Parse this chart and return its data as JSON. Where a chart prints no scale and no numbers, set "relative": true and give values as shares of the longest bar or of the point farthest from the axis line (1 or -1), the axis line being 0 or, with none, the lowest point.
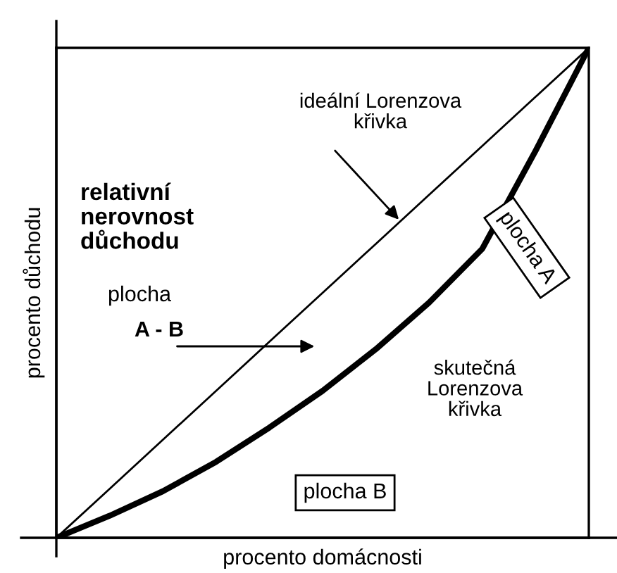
{
  "chart_data": {
    "type": "line",
    "relative": true,
    "xlabel": "procento domácnosti",
    "ylabel": "procento důchodu",
    "categories": [
      null,
      null,
      null,
      null,
      null,
      null,
      null,
      null,
      null,
      null,
      null
    ],
    "series": [
      {
        "name": "ideální Lorenzova\nkřivka",
        "color": "#000000",
        "values": [
          0,
          0.1,
          0.2,
          0.3,
          0.4,
          0.5,
          0.6,
          0.7,
          0.8,
          0.9,
          1
        ]
      },
      {
        "name": "skutečná\nLorenzova\nkřivka",
        "color": "#000000",
        "values": [
          0,
          0.045,
          0.095,
          0.155,
          0.225,
          0.3,
          0.385,
          0.48,
          0.59,
          0.79,
          1
        ]
      }
    ],
    "annotations": [
      "relativní\nnerovnost\ndůchodu",
      "plocha",
      "A - B",
      "plocha A",
      "plocha B"
    ],
    "grid": false,
    "legend": false,
    "marker": "none",
    "line_style": "solid"
  }
}
